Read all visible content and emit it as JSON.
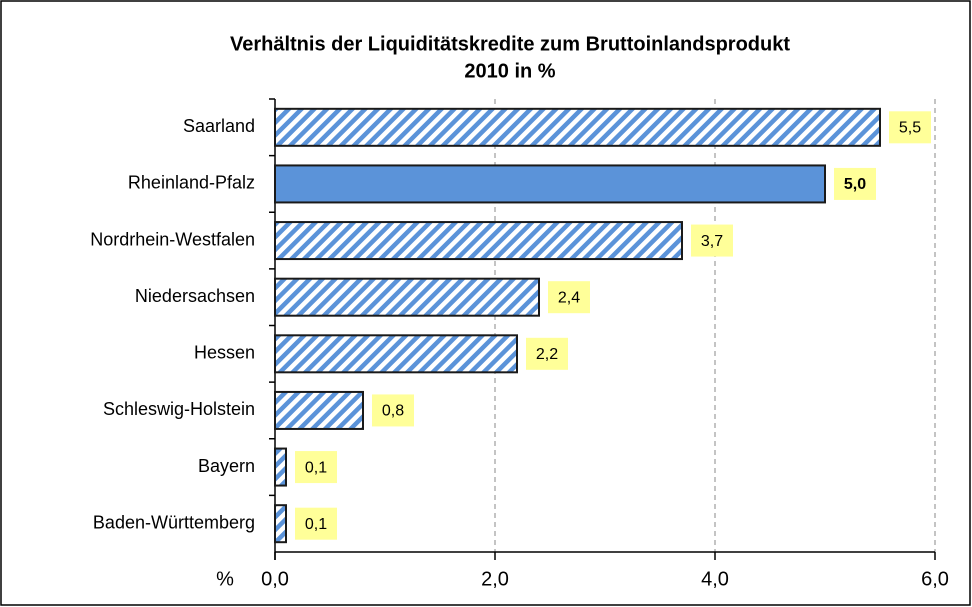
{
  "chart_data": {
    "type": "bar",
    "orientation": "horizontal",
    "title": [
      "Verhältnis der Liquiditätskredite zum Bruttoinlandsprodukt",
      "2010 in %"
    ],
    "xlabel": "%",
    "categories": [
      "Saarland",
      "Rheinland-Pfalz",
      "Nordrhein-Westfalen",
      "Niedersachsen",
      "Hessen",
      "Schleswig-Holstein",
      "Bayern",
      "Baden-Württemberg"
    ],
    "values": [
      5.5,
      5.0,
      3.7,
      2.4,
      2.2,
      0.8,
      0.1,
      0.1
    ],
    "value_labels": [
      "5,5",
      "5,0",
      "3,7",
      "2,4",
      "2,2",
      "0,8",
      "0,1",
      "0,1"
    ],
    "hatched": [
      true,
      false,
      true,
      true,
      true,
      true,
      true,
      true
    ],
    "color": "#5b93d9",
    "label_background": "#ffff99",
    "xlim": [
      0,
      6
    ],
    "xticks": [
      {
        "value": 0,
        "label": "0,0"
      },
      {
        "value": 2,
        "label": "2,0"
      },
      {
        "value": 4,
        "label": "4,0"
      },
      {
        "value": 6,
        "label": "6,0"
      }
    ],
    "grid": true
  }
}
